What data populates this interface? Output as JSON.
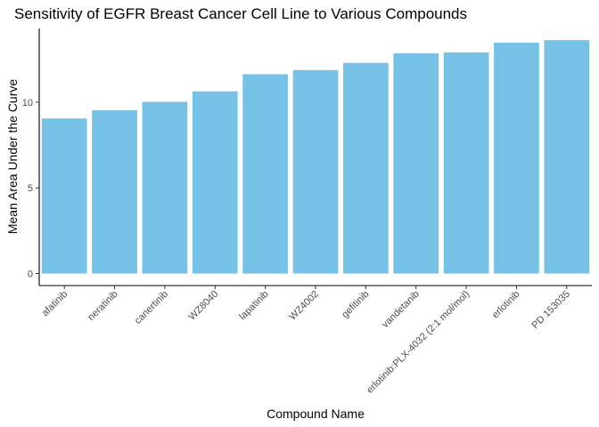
{
  "chart_data": {
    "type": "bar",
    "title": "Sensitivity of EGFR Breast Cancer Cell Line to Various Compounds",
    "xlabel": "Compound Name",
    "ylabel": "Mean Area Under the Curve",
    "categories": [
      "afatinib",
      "neratinib",
      "canertinib",
      "WZ8040",
      "lapatinib",
      "WZ4002",
      "gefitinib",
      "vandetanib",
      "erlotinib:PLX-4032 (2:1 mol/mol)",
      "erlotinib",
      "PD 153035"
    ],
    "values": [
      9.05,
      9.53,
      10.02,
      10.63,
      11.63,
      11.87,
      12.29,
      12.85,
      12.9,
      13.47,
      13.62
    ],
    "ylim": [
      -0.7,
      14.3
    ],
    "yticks": [
      0,
      5,
      10
    ],
    "bar_color": "#76c2e6",
    "grid": false,
    "legend": "none"
  }
}
